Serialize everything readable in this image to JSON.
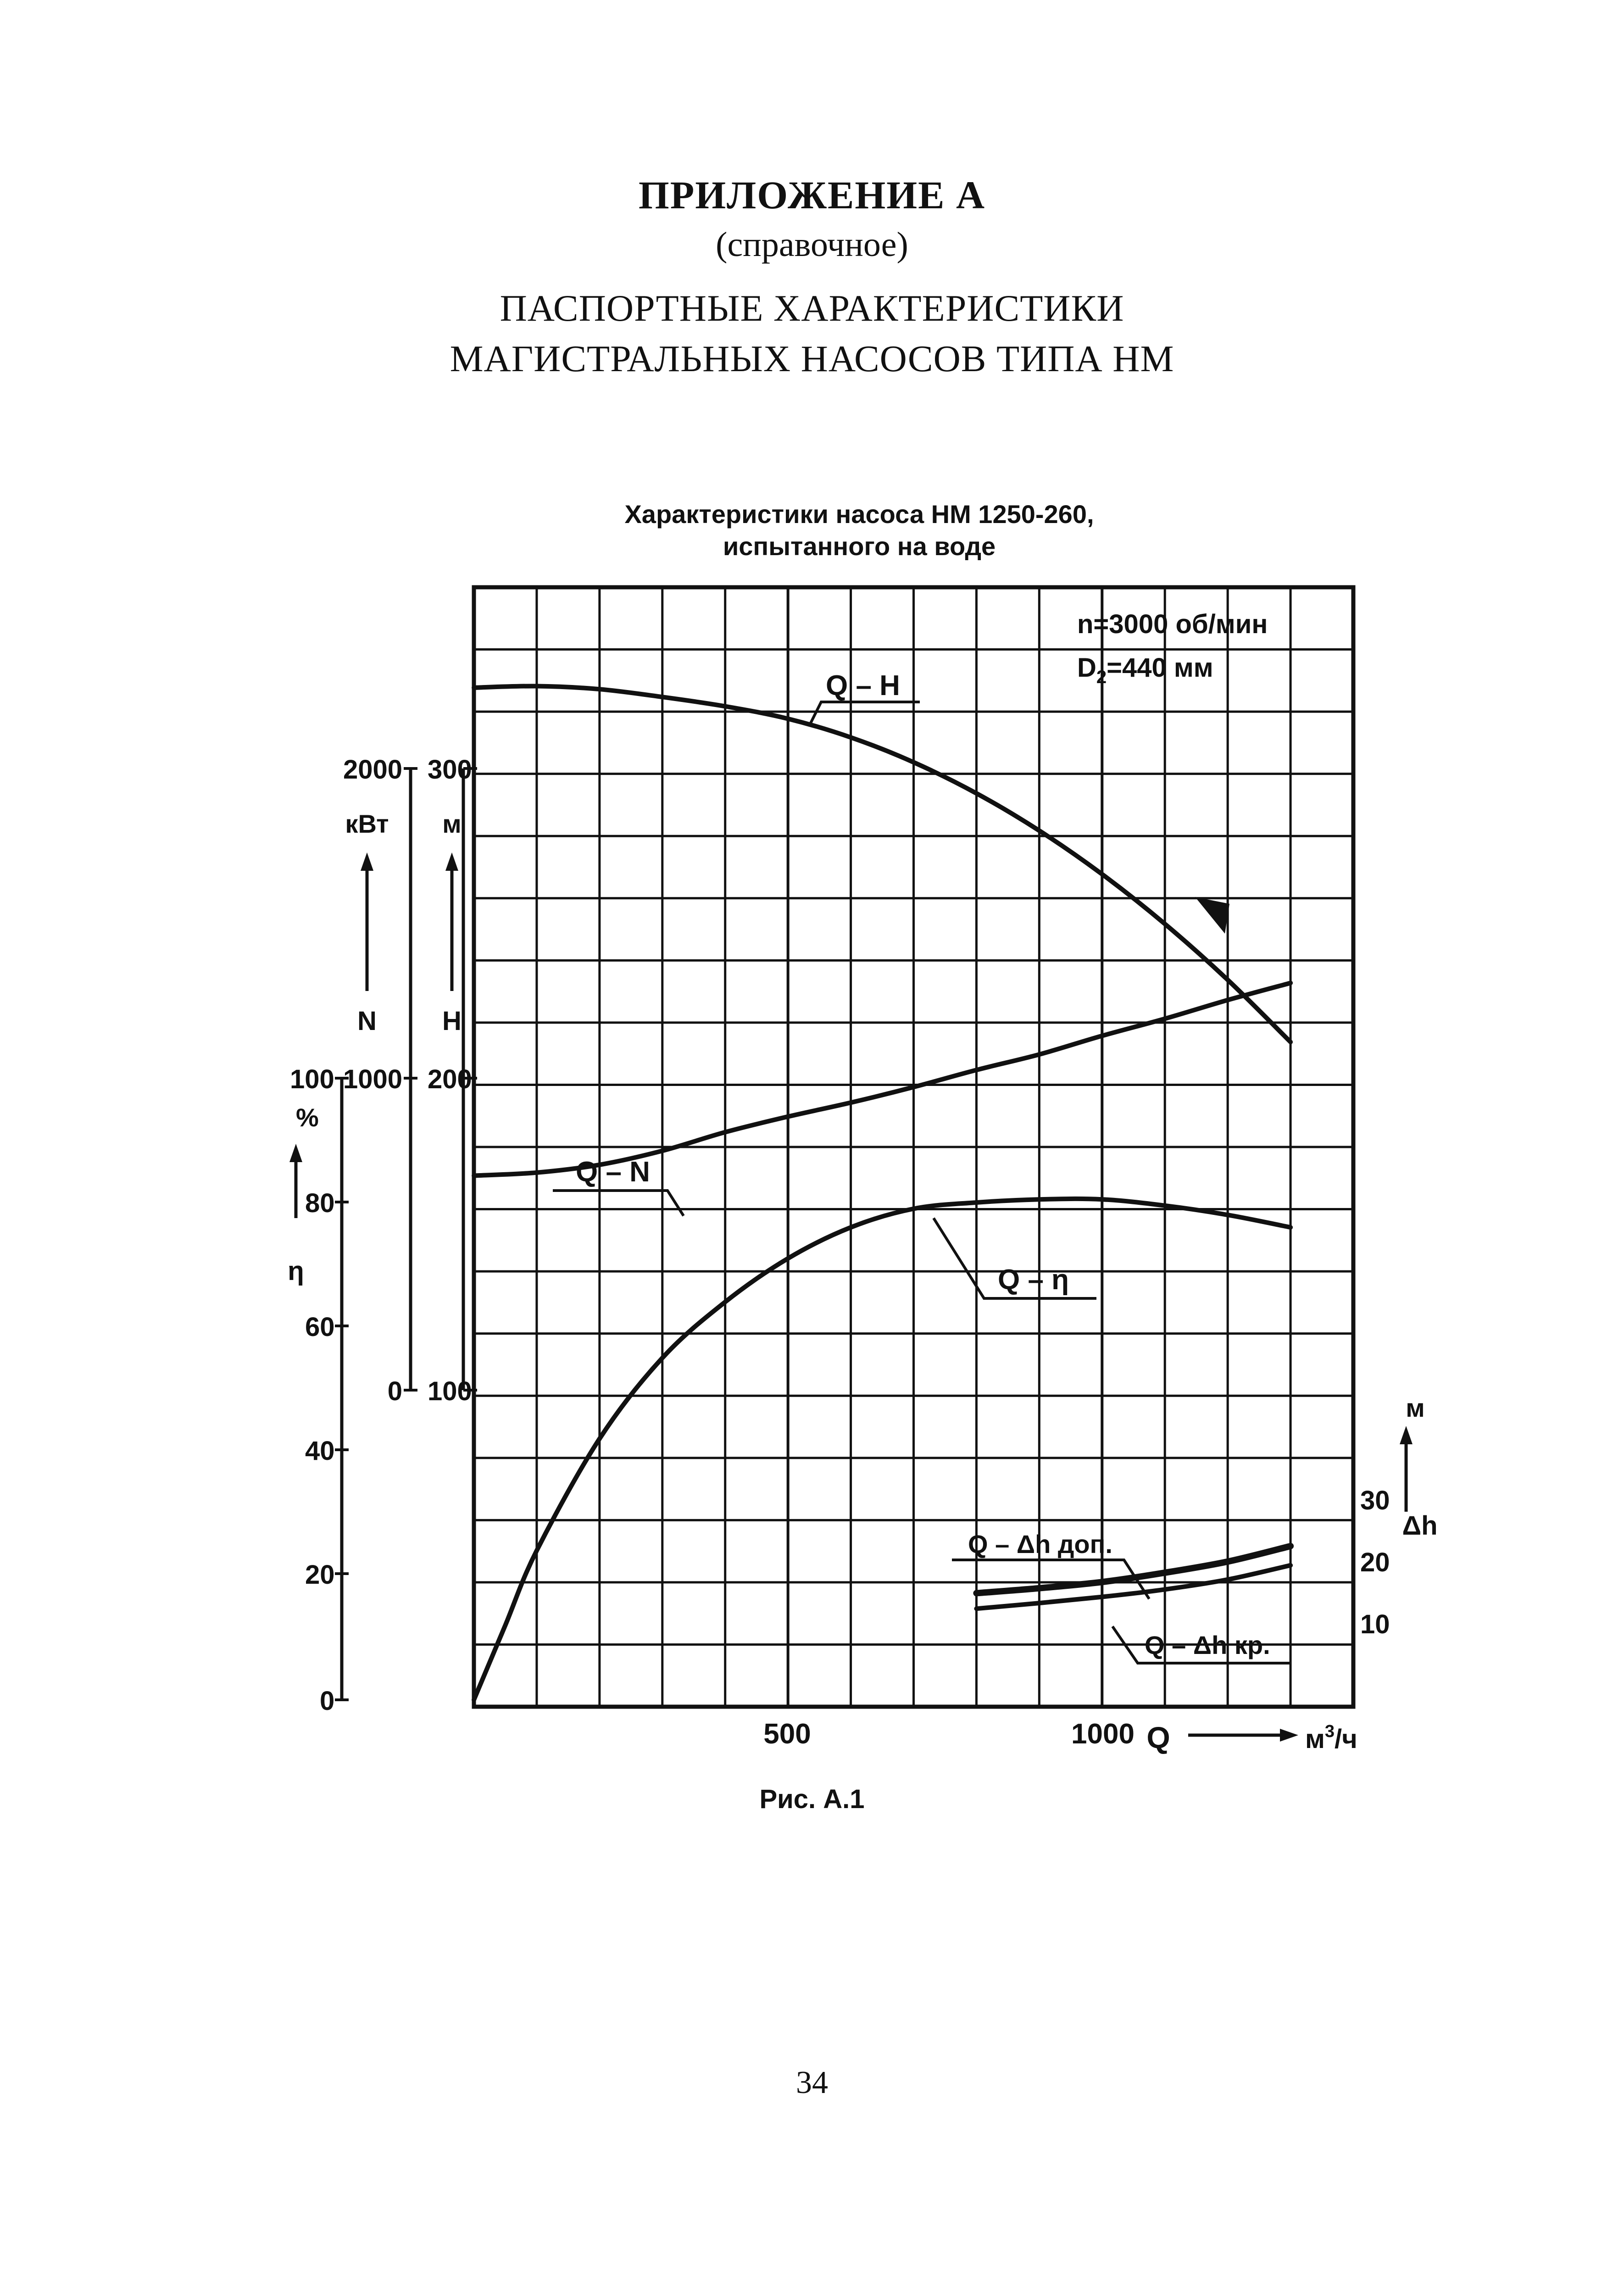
{
  "header": {
    "appendix": "ПРИЛОЖЕНИЕ А",
    "note": "(справочное)",
    "title_line1": "ПАСПОРТНЫЕ ХАРАКТЕРИСТИКИ",
    "title_line2": "МАГИСТРАЛЬНЫХ НАСОСОВ ТИПА НМ"
  },
  "figure_caption": "Рис. А.1",
  "page_number": "34",
  "chart_data": {
    "type": "line",
    "title_line1": "Характеристики насоса НМ 1250-260,",
    "title_line2": "испытанного на воде",
    "info_line1": "n=3000 об/мин",
    "info_line2_prefix": "D",
    "info_line2_sub": "2",
    "info_line2_suffix": "=440 мм",
    "x_axis": {
      "range": [
        0,
        1400
      ],
      "ticks": [
        "500",
        "1000"
      ],
      "label": "Q",
      "unit_base": "м",
      "unit_sup": "3",
      "unit_tail": "/ч"
    },
    "axes": {
      "N": {
        "label": "N",
        "unit": "кВт",
        "range": [
          0,
          2000
        ],
        "ticks": [
          "0",
          "1000",
          "2000"
        ]
      },
      "H": {
        "label": "H",
        "unit": "м",
        "range": [
          100,
          300
        ],
        "ticks": [
          "100",
          "200",
          "300"
        ]
      },
      "eta": {
        "label": "η",
        "unit": "%",
        "range": [
          0,
          100
        ],
        "ticks": [
          "0",
          "20",
          "40",
          "60",
          "80",
          "100"
        ]
      },
      "dh": {
        "label": "Δh",
        "unit": "м",
        "range": [
          0,
          30
        ],
        "ticks": [
          "10",
          "20",
          "30"
        ]
      }
    },
    "grid": true,
    "series": [
      {
        "name": "Q – H",
        "axis": "H",
        "x": [
          0,
          100,
          200,
          300,
          400,
          500,
          600,
          700,
          800,
          900,
          1000,
          1100,
          1200,
          1300
        ],
        "y": [
          326,
          326.5,
          325.5,
          323,
          320,
          316,
          310,
          302,
          292,
          280,
          266,
          250,
          232,
          212
        ]
      },
      {
        "name": "Q – N",
        "axis": "N",
        "x": [
          0,
          100,
          200,
          300,
          400,
          500,
          600,
          700,
          800,
          900,
          1000,
          1100,
          1200,
          1300
        ],
        "y": [
          690,
          700,
          725,
          770,
          830,
          880,
          925,
          975,
          1030,
          1080,
          1140,
          1195,
          1255,
          1310
        ]
      },
      {
        "name": "Q – η",
        "axis": "eta",
        "x": [
          0,
          50,
          100,
          200,
          300,
          400,
          500,
          600,
          700,
          800,
          900,
          1000,
          1100,
          1200,
          1300
        ],
        "y": [
          0,
          12,
          24,
          42,
          55,
          64,
          71,
          76,
          79,
          80,
          80.5,
          80.5,
          79.5,
          78,
          76
        ]
      },
      {
        "name": "Q – Δh доп.",
        "axis": "dh",
        "x": [
          800,
          900,
          1000,
          1100,
          1200,
          1300
        ],
        "y": [
          15,
          15.8,
          16.8,
          18.3,
          20.1,
          22.6
        ]
      },
      {
        "name": "Q – Δh кр.",
        "axis": "dh",
        "x": [
          800,
          900,
          1000,
          1100,
          1200,
          1300
        ],
        "y": [
          12.5,
          13.4,
          14.4,
          15.6,
          17.2,
          19.5
        ]
      }
    ]
  }
}
